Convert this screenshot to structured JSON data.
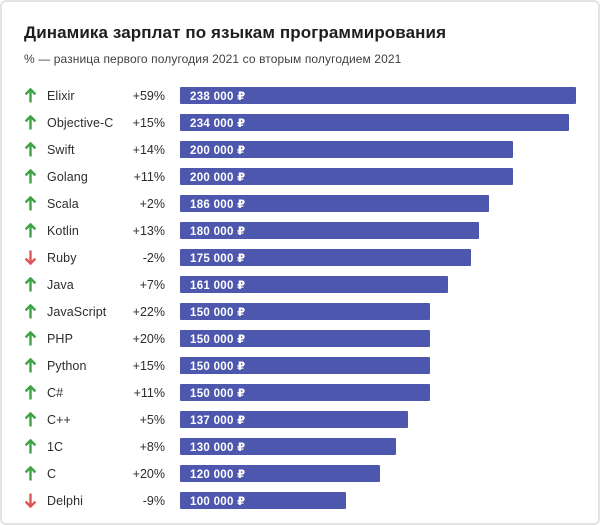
{
  "card": {
    "title": "Динамика зарплат по языкам программирования",
    "subtitle": "% — разница первого полугодия 2021 со вторым полугодием 2021"
  },
  "colors": {
    "bar": "#4d57ae",
    "up_arrow": "#3fa244",
    "down_arrow": "#dd5757",
    "bar_text": "#ffffff",
    "title_text": "#1d1d1d",
    "subtitle_text": "#3f3f3f"
  },
  "chart_data": {
    "type": "bar",
    "orientation": "horizontal",
    "title": "Динамика зарплат по языкам программирования",
    "subtitle": "% — разница первого полугодия 2021 со вторым полугодием 2021",
    "value_unit": "₽",
    "xlim": [
      0,
      238000
    ],
    "max_value": 238000,
    "categories": [
      "Elixir",
      "Objective-C",
      "Swift",
      "Golang",
      "Scala",
      "Kotlin",
      "Ruby",
      "Java",
      "JavaScript",
      "PHP",
      "Python",
      "C#",
      "C++",
      "1C",
      "C",
      "Delphi"
    ],
    "series": [
      {
        "name": "salary_rub",
        "values": [
          238000,
          234000,
          200000,
          200000,
          186000,
          180000,
          175000,
          161000,
          150000,
          150000,
          150000,
          150000,
          137000,
          130000,
          120000,
          100000
        ]
      },
      {
        "name": "change_pct",
        "values": [
          59,
          15,
          14,
          11,
          2,
          13,
          -2,
          7,
          22,
          20,
          15,
          11,
          5,
          8,
          20,
          -9
        ]
      }
    ],
    "rows": [
      {
        "language": "Elixir",
        "change": "+59%",
        "direction": "up",
        "salary": 238000,
        "salary_label": "238 000 ₽"
      },
      {
        "language": "Objective-C",
        "change": "+15%",
        "direction": "up",
        "salary": 234000,
        "salary_label": "234 000 ₽"
      },
      {
        "language": "Swift",
        "change": "+14%",
        "direction": "up",
        "salary": 200000,
        "salary_label": "200 000 ₽"
      },
      {
        "language": "Golang",
        "change": "+11%",
        "direction": "up",
        "salary": 200000,
        "salary_label": "200 000 ₽"
      },
      {
        "language": "Scala",
        "change": "+2%",
        "direction": "up",
        "salary": 186000,
        "salary_label": "186 000 ₽"
      },
      {
        "language": "Kotlin",
        "change": "+13%",
        "direction": "up",
        "salary": 180000,
        "salary_label": "180 000 ₽"
      },
      {
        "language": "Ruby",
        "change": "-2%",
        "direction": "down",
        "salary": 175000,
        "salary_label": "175 000 ₽"
      },
      {
        "language": "Java",
        "change": "+7%",
        "direction": "up",
        "salary": 161000,
        "salary_label": "161 000 ₽"
      },
      {
        "language": "JavaScript",
        "change": "+22%",
        "direction": "up",
        "salary": 150000,
        "salary_label": "150 000 ₽"
      },
      {
        "language": "PHP",
        "change": "+20%",
        "direction": "up",
        "salary": 150000,
        "salary_label": "150 000 ₽"
      },
      {
        "language": "Python",
        "change": "+15%",
        "direction": "up",
        "salary": 150000,
        "salary_label": "150 000 ₽"
      },
      {
        "language": "C#",
        "change": "+11%",
        "direction": "up",
        "salary": 150000,
        "salary_label": "150 000 ₽"
      },
      {
        "language": "C++",
        "change": "+5%",
        "direction": "up",
        "salary": 137000,
        "salary_label": "137 000 ₽"
      },
      {
        "language": "1C",
        "change": "+8%",
        "direction": "up",
        "salary": 130000,
        "salary_label": "130 000 ₽"
      },
      {
        "language": "C",
        "change": "+20%",
        "direction": "up",
        "salary": 120000,
        "salary_label": "120 000 ₽"
      },
      {
        "language": "Delphi",
        "change": "-9%",
        "direction": "down",
        "salary": 100000,
        "salary_label": "100 000 ₽"
      }
    ]
  }
}
